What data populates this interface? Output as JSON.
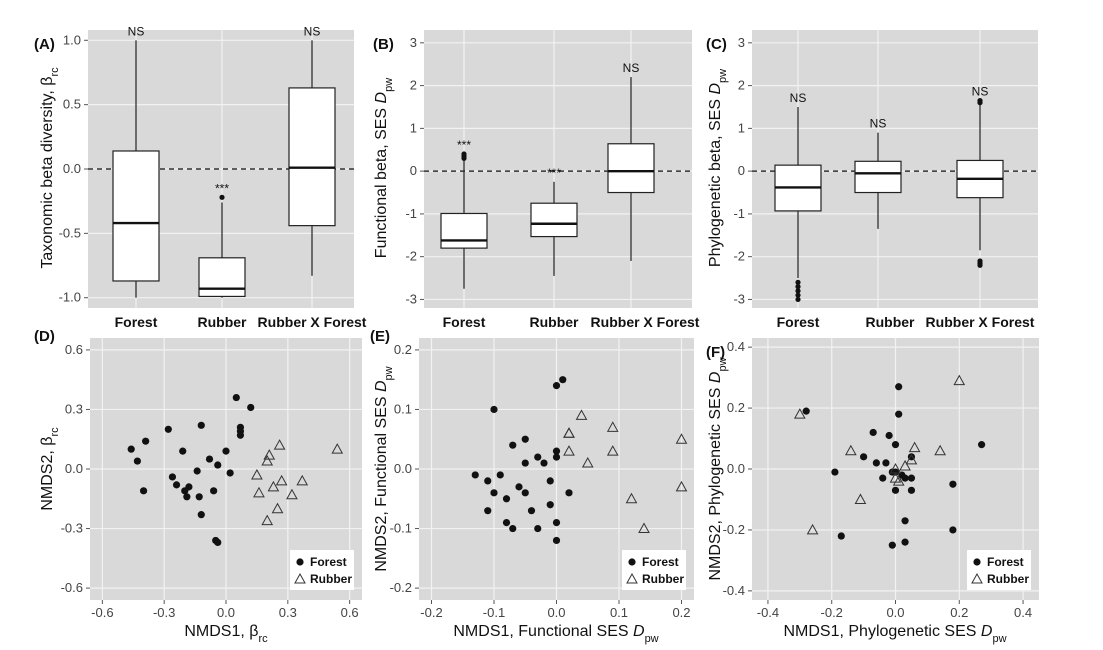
{
  "figure": {
    "colors": {
      "panel_bg": "#d9d9d9",
      "grid": "#f2f2f2",
      "box_fill": "#ffffff",
      "ink": "#111111",
      "tick_text": "#444444"
    },
    "legend_labels": [
      "Forest",
      "Rubber"
    ],
    "marker_symbols": {
      "forest": "circle-filled",
      "rubber": "triangle-open"
    }
  },
  "chart_data": [
    {
      "id": "A",
      "panel_label": "(A)",
      "type": "box",
      "ylabel": "Taxonomic beta diversity, β",
      "ylabel_sub": "rc",
      "ylabel_italic": "",
      "ylim": [
        -1.08,
        1.08
      ],
      "yticks": [
        -1.0,
        -0.5,
        0.0,
        0.5,
        1.0
      ],
      "ytick_labels": [
        "-1.0",
        "-0.5",
        "0.0",
        "0.5",
        "1.0"
      ],
      "reference_line": 0,
      "categories": [
        "Forest",
        "Rubber",
        "Rubber X Forest"
      ],
      "boxes": [
        {
          "q1": -0.87,
          "median": -0.42,
          "q3": 0.14,
          "whisker_low": -1.0,
          "whisker_high": 1.0,
          "outliers": [],
          "sig": "NS"
        },
        {
          "q1": -0.99,
          "median": -0.93,
          "q3": -0.69,
          "whisker_low": -1.0,
          "whisker_high": -0.26,
          "outliers": [
            -0.22
          ],
          "sig": "***"
        },
        {
          "q1": -0.44,
          "median": 0.01,
          "q3": 0.63,
          "whisker_low": -0.83,
          "whisker_high": 1.0,
          "outliers": [],
          "sig": "NS"
        }
      ]
    },
    {
      "id": "B",
      "panel_label": "(B)",
      "type": "box",
      "ylabel": "Functional beta, SES ",
      "ylabel_sub": "pw",
      "ylabel_italic": "D",
      "ylim": [
        -3.2,
        3.3
      ],
      "yticks": [
        -3,
        -2,
        -1,
        0,
        1,
        2,
        3
      ],
      "ytick_labels": [
        "-3",
        "-2",
        "-1",
        "0",
        "1",
        "2",
        "3"
      ],
      "reference_line": 0,
      "categories": [
        "Forest",
        "Rubber",
        "Rubber X Forest"
      ],
      "boxes": [
        {
          "q1": -1.8,
          "median": -1.62,
          "q3": -0.99,
          "whisker_low": -2.75,
          "whisker_high": 0.25,
          "outliers": [
            0.3,
            0.35,
            0.4
          ],
          "sig": "***"
        },
        {
          "q1": -1.53,
          "median": -1.23,
          "q3": -0.75,
          "whisker_low": -2.45,
          "whisker_high": -0.25,
          "outliers": [],
          "sig": "***"
        },
        {
          "q1": -0.5,
          "median": 0.0,
          "q3": 0.64,
          "whisker_low": -2.1,
          "whisker_high": 2.2,
          "outliers": [],
          "sig": "NS"
        }
      ]
    },
    {
      "id": "C",
      "panel_label": "(C)",
      "type": "box",
      "ylabel": "Phylogenetic beta, SES ",
      "ylabel_sub": "pw",
      "ylabel_italic": "D",
      "ylim": [
        -3.2,
        3.3
      ],
      "yticks": [
        -3,
        -2,
        -1,
        0,
        1,
        2,
        3
      ],
      "ytick_labels": [
        "-3",
        "-2",
        "-1",
        "0",
        "1",
        "2",
        "3"
      ],
      "reference_line": 0,
      "categories": [
        "Forest",
        "Rubber",
        "Rubber X Forest"
      ],
      "boxes": [
        {
          "q1": -0.93,
          "median": -0.38,
          "q3": 0.14,
          "whisker_low": -2.5,
          "whisker_high": 1.5,
          "outliers": [
            -2.6,
            -2.7,
            -2.8,
            -2.9,
            -3.0
          ],
          "sig": "NS"
        },
        {
          "q1": -0.5,
          "median": -0.05,
          "q3": 0.23,
          "whisker_low": -1.35,
          "whisker_high": 0.9,
          "outliers": [],
          "sig": "NS"
        },
        {
          "q1": -0.62,
          "median": -0.18,
          "q3": 0.25,
          "whisker_low": -1.85,
          "whisker_high": 1.55,
          "outliers": [
            1.6,
            1.65,
            -2.1,
            -2.15,
            -2.2
          ],
          "sig": "NS"
        }
      ]
    },
    {
      "id": "D",
      "panel_label": "(D)",
      "type": "scatter",
      "xlabel": "NMDS1, β",
      "xlabel_sub": "rc",
      "xlabel_italic": "",
      "ylabel": "NMDS2, β",
      "ylabel_sub": "rc",
      "ylabel_italic": "",
      "xlim": [
        -0.66,
        0.66
      ],
      "ylim": [
        -0.66,
        0.66
      ],
      "xticks": [
        -0.6,
        -0.3,
        0.0,
        0.3,
        0.6
      ],
      "xtick_labels": [
        "-0.6",
        "-0.3",
        "0.0",
        "0.3",
        "0.6"
      ],
      "yticks": [
        -0.6,
        -0.3,
        0.0,
        0.3,
        0.6
      ],
      "ytick_labels": [
        "-0.6",
        "-0.3",
        "0.0",
        "0.3",
        "0.6"
      ],
      "legend": [
        "Forest",
        "Rubber"
      ],
      "series": [
        {
          "name": "Forest",
          "marker": "circle",
          "points": [
            [
              -0.46,
              0.1
            ],
            [
              -0.43,
              0.04
            ],
            [
              -0.39,
              0.14
            ],
            [
              -0.4,
              -0.11
            ],
            [
              -0.28,
              0.2
            ],
            [
              -0.26,
              -0.04
            ],
            [
              -0.24,
              -0.08
            ],
            [
              -0.21,
              0.09
            ],
            [
              -0.2,
              -0.11
            ],
            [
              -0.19,
              -0.14
            ],
            [
              -0.18,
              -0.09
            ],
            [
              -0.14,
              -0.01
            ],
            [
              -0.13,
              -0.14
            ],
            [
              -0.12,
              0.22
            ],
            [
              -0.12,
              -0.23
            ],
            [
              -0.08,
              0.05
            ],
            [
              -0.06,
              -0.11
            ],
            [
              -0.04,
              0.02
            ],
            [
              -0.05,
              -0.36
            ],
            [
              -0.04,
              -0.37
            ],
            [
              0.0,
              0.09
            ],
            [
              0.02,
              -0.02
            ],
            [
              0.05,
              0.36
            ],
            [
              0.07,
              0.21
            ],
            [
              0.07,
              0.17
            ],
            [
              0.07,
              0.19
            ],
            [
              0.12,
              0.31
            ]
          ]
        },
        {
          "name": "Rubber",
          "marker": "triangle",
          "points": [
            [
              0.54,
              0.1
            ],
            [
              0.37,
              -0.06
            ],
            [
              0.32,
              -0.13
            ],
            [
              0.27,
              -0.06
            ],
            [
              0.26,
              0.12
            ],
            [
              0.21,
              0.07
            ],
            [
              0.2,
              0.04
            ],
            [
              0.23,
              -0.09
            ],
            [
              0.25,
              -0.2
            ],
            [
              0.2,
              -0.26
            ],
            [
              0.15,
              -0.03
            ],
            [
              0.16,
              -0.12
            ]
          ]
        }
      ]
    },
    {
      "id": "E",
      "panel_label": "(E)",
      "type": "scatter",
      "xlabel": "NMDS1, Functional SES ",
      "xlabel_sub": "pw",
      "xlabel_italic": "D",
      "ylabel": "NMDS2, Functional SES ",
      "ylabel_sub": "pw",
      "ylabel_italic": "D",
      "xlim": [
        -0.22,
        0.22
      ],
      "ylim": [
        -0.22,
        0.22
      ],
      "xticks": [
        -0.2,
        -0.1,
        0.0,
        0.1,
        0.2
      ],
      "xtick_labels": [
        "-0.2",
        "-0.1",
        "0.0",
        "0.1",
        "0.2"
      ],
      "yticks": [
        -0.2,
        -0.1,
        0.0,
        0.1,
        0.2
      ],
      "ytick_labels": [
        "-0.2",
        "-0.1",
        "0.0",
        "0.1",
        "0.2"
      ],
      "legend": [
        "Forest",
        "Rubber"
      ],
      "series": [
        {
          "name": "Forest",
          "marker": "circle",
          "points": [
            [
              -0.13,
              -0.01
            ],
            [
              -0.11,
              -0.02
            ],
            [
              -0.11,
              -0.07
            ],
            [
              -0.1,
              0.1
            ],
            [
              -0.1,
              -0.04
            ],
            [
              -0.09,
              -0.01
            ],
            [
              -0.08,
              -0.05
            ],
            [
              -0.08,
              -0.09
            ],
            [
              -0.07,
              -0.1
            ],
            [
              -0.07,
              0.04
            ],
            [
              -0.06,
              -0.03
            ],
            [
              -0.05,
              0.05
            ],
            [
              -0.05,
              0.01
            ],
            [
              -0.05,
              -0.04
            ],
            [
              -0.04,
              -0.07
            ],
            [
              -0.03,
              0.02
            ],
            [
              -0.03,
              -0.1
            ],
            [
              -0.02,
              0.01
            ],
            [
              -0.01,
              -0.02
            ],
            [
              -0.01,
              -0.06
            ],
            [
              0.0,
              0.14
            ],
            [
              0.01,
              0.15
            ],
            [
              0.0,
              0.03
            ],
            [
              0.0,
              0.02
            ],
            [
              0.0,
              -0.09
            ],
            [
              0.0,
              -0.12
            ],
            [
              0.02,
              -0.04
            ]
          ]
        },
        {
          "name": "Rubber",
          "marker": "triangle",
          "points": [
            [
              0.04,
              0.09
            ],
            [
              0.02,
              0.06
            ],
            [
              0.02,
              0.06
            ],
            [
              0.02,
              0.03
            ],
            [
              0.05,
              0.01
            ],
            [
              0.09,
              0.07
            ],
            [
              0.09,
              0.03
            ],
            [
              0.12,
              -0.05
            ],
            [
              0.14,
              -0.1
            ],
            [
              0.2,
              0.05
            ],
            [
              0.2,
              -0.03
            ]
          ]
        }
      ]
    },
    {
      "id": "F",
      "panel_label": "(F)",
      "type": "scatter",
      "xlabel": "NMDS1, Phylogenetic SES ",
      "xlabel_sub": "pw",
      "xlabel_italic": "D",
      "ylabel": "NMDS2, Phylogenetic SES ",
      "ylabel_sub": "pw",
      "ylabel_italic": "D",
      "xlim": [
        -0.45,
        0.45
      ],
      "ylim": [
        -0.43,
        0.43
      ],
      "xticks": [
        -0.4,
        -0.2,
        0.0,
        0.2,
        0.4
      ],
      "xtick_labels": [
        "-0.4",
        "-0.2",
        "0.0",
        "0.2",
        "0.4"
      ],
      "yticks": [
        -0.4,
        -0.2,
        0.0,
        0.2,
        0.4
      ],
      "ytick_labels": [
        "-0.4",
        "-0.2",
        "0.0",
        "0.2",
        "0.4"
      ],
      "legend": [
        "Forest",
        "Rubber"
      ],
      "series": [
        {
          "name": "Forest",
          "marker": "circle",
          "points": [
            [
              -0.28,
              0.19
            ],
            [
              -0.19,
              -0.01
            ],
            [
              -0.17,
              -0.22
            ],
            [
              -0.1,
              0.04
            ],
            [
              -0.07,
              0.12
            ],
            [
              -0.06,
              0.02
            ],
            [
              -0.04,
              -0.03
            ],
            [
              -0.03,
              0.02
            ],
            [
              -0.02,
              0.11
            ],
            [
              -0.01,
              -0.01
            ],
            [
              0.0,
              -0.01
            ],
            [
              0.0,
              0.08
            ],
            [
              0.01,
              0.27
            ],
            [
              0.01,
              0.18
            ],
            [
              0.0,
              -0.07
            ],
            [
              -0.01,
              -0.25
            ],
            [
              0.02,
              -0.02
            ],
            [
              0.03,
              -0.03
            ],
            [
              0.03,
              -0.17
            ],
            [
              0.03,
              -0.24
            ],
            [
              0.05,
              0.04
            ],
            [
              0.05,
              -0.03
            ],
            [
              0.05,
              -0.07
            ],
            [
              0.18,
              -0.05
            ],
            [
              0.18,
              -0.2
            ],
            [
              0.27,
              0.08
            ]
          ]
        },
        {
          "name": "Rubber",
          "marker": "triangle",
          "points": [
            [
              -0.3,
              0.18
            ],
            [
              -0.26,
              -0.2
            ],
            [
              -0.14,
              0.06
            ],
            [
              -0.11,
              -0.1
            ],
            [
              0.0,
              0.0
            ],
            [
              0.0,
              -0.03
            ],
            [
              0.01,
              -0.04
            ],
            [
              0.03,
              0.01
            ],
            [
              0.05,
              0.03
            ],
            [
              0.06,
              0.07
            ],
            [
              0.14,
              0.06
            ],
            [
              0.2,
              0.29
            ]
          ]
        }
      ]
    }
  ]
}
